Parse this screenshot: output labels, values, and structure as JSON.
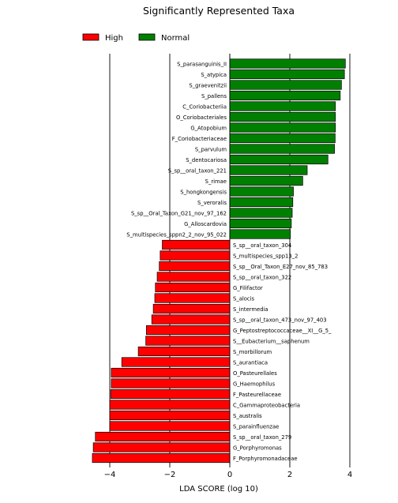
{
  "chart_data": {
    "type": "bar",
    "orientation": "horizontal",
    "title": "Significantly Represented Taxa",
    "xlabel": "LDA SCORE (log 10)",
    "ylabel": "",
    "xlim": [
      -5,
      5
    ],
    "xticks": [
      -4,
      -2,
      0,
      2,
      4
    ],
    "grid": "vertical lines at x ticks",
    "legend": {
      "position": "top",
      "entries": [
        {
          "name": "High",
          "color": "#ff0000"
        },
        {
          "name": "Normal",
          "color": "#008000"
        }
      ]
    },
    "series": [
      {
        "name": "Normal",
        "color": "#008000",
        "categories": [
          "S_parasanguinis_II",
          "S_atypica",
          "S_graevenitzii",
          "S_pallens",
          "C_Coriobacteriia",
          "O_Coriobacteriales",
          "G_Atopobium",
          "F_Coriobacteriaceae",
          "S_parvulum",
          "S_dentocariosa",
          "S_sp__oral_taxon_221",
          "S_rimae",
          "S_hongkongensis",
          "S_veroralis",
          "S_sp__Oral_Taxon_G21_nov_97_162",
          "G_Alloscardovia",
          "S_multispecies_sppn2_2_nov_95_022"
        ],
        "values": [
          3.85,
          3.82,
          3.72,
          3.68,
          3.52,
          3.52,
          3.52,
          3.51,
          3.49,
          3.27,
          2.58,
          2.43,
          2.12,
          2.1,
          2.08,
          2.05,
          2.02
        ]
      },
      {
        "name": "High",
        "color": "#ff0000",
        "categories": [
          "S_sp__oral_taxon_304",
          "S_multispecies_spp13_2",
          "S_sp__Oral_Taxon_E27_nov_85_783",
          "S_sp__oral_taxon_322",
          "G_Filifactor",
          "S_alocis",
          "S_intermedia",
          "S_sp__oral_taxon_473_nov_97_403",
          "G_Peptostreptococcaceae__XI__G_5_",
          "S__Eubacterium__saphenum",
          "S_morbillorum",
          "S_aurantiaca",
          "O_Pasteurellales",
          "G_Haemophilus",
          "F_Pasteurellaceae",
          "C_Gammaproteobacteria",
          "S_australis",
          "S_parainfluenzae",
          "S_sp__oral_taxon_279",
          "G_Porphyromonas",
          "F_Porphyromonadaceae"
        ],
        "values": [
          -2.25,
          -2.32,
          -2.35,
          -2.42,
          -2.48,
          -2.5,
          -2.55,
          -2.6,
          -2.78,
          -2.8,
          -3.05,
          -3.6,
          -3.95,
          -3.95,
          -3.97,
          -4.0,
          -4.0,
          -4.0,
          -4.48,
          -4.55,
          -4.58
        ]
      }
    ]
  }
}
